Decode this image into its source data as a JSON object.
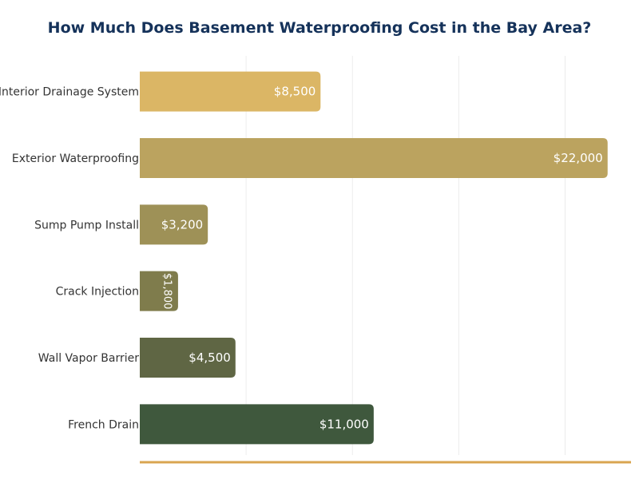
{
  "chart_data": {
    "type": "bar",
    "orientation": "horizontal",
    "title": "How Much Does Basement Waterproofing Cost in the Bay Area?",
    "categories": [
      "Interior Drainage System",
      "Exterior Waterproofing",
      "Sump Pump Install",
      "Crack Injection",
      "Wall Vapor Barrier",
      "French Drain"
    ],
    "values": [
      8500,
      22000,
      3200,
      1800,
      4500,
      11000
    ],
    "data_labels": [
      "$8,500",
      "$22,000",
      "$3,200",
      "$1,800",
      "$4,500",
      "$11,000"
    ],
    "colors": [
      "#DBB665",
      "#BBA35F",
      "#9E9157",
      "#7F7C4C",
      "#5F6644",
      "#3F583D"
    ],
    "axis_line_color": "#D9A550",
    "title_color": "#15325A",
    "xlabel": "",
    "ylabel": "",
    "xlim": [
      0,
      23100
    ],
    "gridlines": [
      5000,
      10000,
      15000,
      20000
    ],
    "grid": true,
    "legend": "none"
  }
}
